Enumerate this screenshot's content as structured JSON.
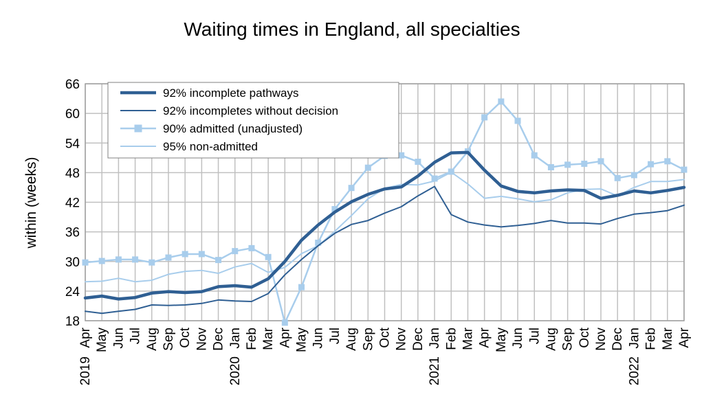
{
  "chart_data": {
    "type": "line",
    "title": "Waiting times in England, all specialties",
    "ylabel": "within  (weeks)",
    "xlabel": "",
    "ylim": [
      18,
      66
    ],
    "yticks": [
      18,
      24,
      30,
      36,
      42,
      48,
      54,
      60,
      66
    ],
    "grid": true,
    "legend_position": "top-left",
    "x": [
      "Apr",
      "May",
      "Jun",
      "Jul",
      "Aug",
      "Sep",
      "Oct",
      "Nov",
      "Dec",
      "Jan",
      "Feb",
      "Mar",
      "Apr",
      "May",
      "Jun",
      "Jul",
      "Aug",
      "Sep",
      "Oct",
      "Nov",
      "Dec",
      "Jan",
      "Feb",
      "Mar",
      "Apr",
      "May",
      "Jun",
      "Jul",
      "Aug",
      "Sep",
      "Oct",
      "Nov",
      "Dec",
      "Jan",
      "Feb",
      "Mar",
      "Apr"
    ],
    "year_labels": [
      {
        "index": 0,
        "text": "2019"
      },
      {
        "index": 9,
        "text": "2020"
      },
      {
        "index": 21,
        "text": "2021"
      },
      {
        "index": 33,
        "text": "2022"
      }
    ],
    "series": [
      {
        "name": "92% incomplete pathways",
        "color": "#2f5f93",
        "style": "thick",
        "values": [
          22.6,
          23.0,
          22.4,
          22.7,
          23.6,
          23.9,
          23.7,
          23.9,
          24.9,
          25.1,
          24.8,
          26.5,
          30.0,
          34.3,
          37.4,
          40.0,
          42.1,
          43.6,
          44.7,
          45.1,
          47.3,
          50.1,
          52.0,
          52.1,
          48.5,
          45.3,
          44.2,
          43.9,
          44.3,
          44.5,
          44.4,
          42.8,
          43.4,
          44.3,
          43.9,
          44.4,
          45.0
        ]
      },
      {
        "name": "92% incompletes without decision",
        "color": "#2f5f93",
        "style": "thin",
        "values": [
          19.9,
          19.5,
          19.9,
          20.3,
          21.2,
          21.1,
          21.2,
          21.5,
          22.2,
          22.0,
          21.9,
          23.5,
          27.3,
          30.4,
          33.2,
          35.7,
          37.5,
          38.3,
          39.8,
          41.1,
          43.3,
          45.2,
          39.5,
          38.0,
          37.4,
          37.0,
          37.3,
          37.7,
          38.3,
          37.8,
          37.8,
          37.6,
          38.7,
          39.6,
          39.9,
          40.3,
          41.4
        ]
      },
      {
        "name": "90% admitted (unadjusted)",
        "color": "#a8cdec",
        "style": "markers",
        "values": [
          29.8,
          30.1,
          30.4,
          30.4,
          29.8,
          30.8,
          31.5,
          31.5,
          30.3,
          32.1,
          32.7,
          30.9,
          17.6,
          24.8,
          33.8,
          40.6,
          44.9,
          49.0,
          51.4,
          51.5,
          50.2,
          46.8,
          48.2,
          52.3,
          59.2,
          62.4,
          58.5,
          51.5,
          49.1,
          49.6,
          49.8,
          50.3,
          46.9,
          47.5,
          49.7,
          50.3,
          48.6
        ]
      },
      {
        "name": "95% non-admitted",
        "color": "#a8cdec",
        "style": "thin",
        "values": [
          25.9,
          26.0,
          26.6,
          25.9,
          26.2,
          27.4,
          28.0,
          28.2,
          27.6,
          28.9,
          29.6,
          27.8,
          28.8,
          31.6,
          33.2,
          36.1,
          39.3,
          42.7,
          44.8,
          45.6,
          45.5,
          46.3,
          48.1,
          45.7,
          42.8,
          43.2,
          42.7,
          42.1,
          42.5,
          43.9,
          44.6,
          44.7,
          43.3,
          45.0,
          46.2,
          46.2,
          46.6
        ]
      }
    ]
  }
}
